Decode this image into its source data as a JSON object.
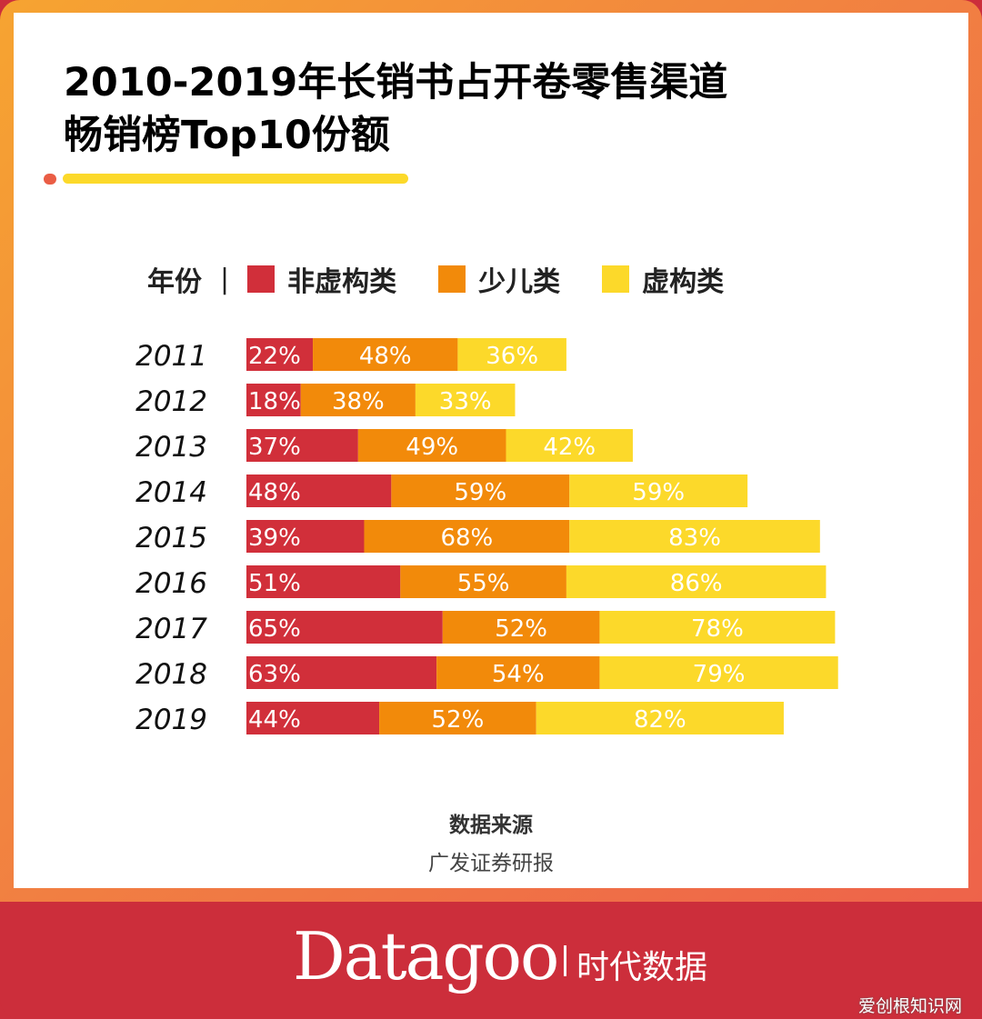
{
  "title_line1": "2010-2019年长销书占开卷零售渠道",
  "title_line2": "畅销榜Top10份额",
  "colors": {
    "red": "#d12f3a",
    "orange": "#f28a0a",
    "yellow": "#fcd92a"
  },
  "chart_data": {
    "type": "bar",
    "orientation": "horizontal-stacked",
    "legend_title": "年份",
    "categories": [
      "2011",
      "2012",
      "2013",
      "2014",
      "2015",
      "2016",
      "2017",
      "2018",
      "2019"
    ],
    "series": [
      {
        "name": "非虚构类",
        "color": "#d12f3a",
        "values": [
          22,
          18,
          37,
          48,
          39,
          51,
          65,
          63,
          44
        ]
      },
      {
        "name": "少儿类",
        "color": "#f28a0a",
        "values": [
          48,
          38,
          49,
          59,
          68,
          55,
          52,
          54,
          52
        ]
      },
      {
        "name": "虚构类",
        "color": "#fcd92a",
        "values": [
          36,
          33,
          42,
          59,
          83,
          86,
          78,
          79,
          82
        ]
      }
    ],
    "value_suffix": "%",
    "legend_position": "top"
  },
  "source": {
    "heading": "数据来源",
    "text": "广发证券研报"
  },
  "footer": {
    "brand": "Datagoo",
    "brand_cn": "时代数据",
    "watermark": "爱创根知识网"
  }
}
